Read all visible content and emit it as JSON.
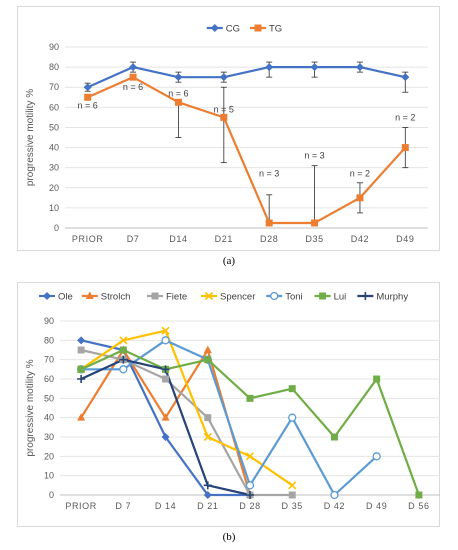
{
  "chart_data": [
    {
      "type": "line",
      "panel": "(a)",
      "categories": [
        "PRIOR",
        "D7",
        "D14",
        "D21",
        "D28",
        "D35",
        "D42",
        "D49"
      ],
      "ylabel": "progressive motility %",
      "ylim": [
        0,
        90
      ],
      "yticks": [
        0,
        10,
        20,
        30,
        40,
        50,
        60,
        70,
        80,
        90
      ],
      "grid": true,
      "legend_position": "top",
      "series": [
        {
          "name": "CG",
          "color": "#4472c4",
          "marker": "diamond",
          "values": [
            70,
            80,
            75,
            75,
            80,
            80,
            80,
            75
          ],
          "error_plus": [
            2,
            2.5,
            2.5,
            2.5,
            2.5,
            2.5,
            2.5,
            2.5
          ],
          "error_minus": [
            2,
            2.5,
            2.5,
            2.5,
            5,
            5,
            2.5,
            7.5
          ]
        },
        {
          "name": "TG",
          "color": "#ed7d31",
          "marker": "square",
          "values": [
            65,
            75,
            62.5,
            55,
            2.5,
            2.5,
            15,
            40
          ],
          "error_plus": [
            0,
            0,
            0,
            15,
            14,
            28.5,
            7.5,
            10
          ],
          "error_minus": [
            0,
            0,
            17.5,
            22.5,
            0,
            0,
            7.5,
            10
          ]
        }
      ],
      "annotations": [
        {
          "text": "n = 6",
          "category": "PRIOR",
          "y": 61
        },
        {
          "text": "n = 6",
          "category": "D7",
          "y": 70
        },
        {
          "text": "n = 6",
          "category": "D14",
          "y": 67
        },
        {
          "text": "n = 5",
          "category": "D21",
          "y": 59
        },
        {
          "text": "n = 3",
          "category": "D28",
          "y": 27
        },
        {
          "text": "n = 3",
          "category": "D35",
          "y": 36
        },
        {
          "text": "n = 2",
          "category": "D42",
          "y": 27
        },
        {
          "text": "n = 2",
          "category": "D49",
          "y": 55
        }
      ]
    },
    {
      "type": "line",
      "panel": "(b)",
      "categories": [
        "PRIOR",
        "D 7",
        "D 14",
        "D 21",
        "D 28",
        "D 35",
        "D 42",
        "D 49",
        "D 56"
      ],
      "ylabel": "progressive motility %",
      "ylim": [
        0,
        90
      ],
      "yticks": [
        0,
        10,
        20,
        30,
        40,
        50,
        60,
        70,
        80,
        90
      ],
      "grid": true,
      "legend_position": "top",
      "series": [
        {
          "name": "Ole",
          "color": "#4472c4",
          "marker": "diamond",
          "values": [
            80,
            75,
            30,
            0,
            0,
            null,
            null,
            null,
            null
          ]
        },
        {
          "name": "Strolch",
          "color": "#ed7d31",
          "marker": "triangle",
          "values": [
            40,
            75,
            40,
            75,
            0,
            null,
            null,
            null,
            null
          ]
        },
        {
          "name": "Fiete",
          "color": "#a5a5a5",
          "marker": "square",
          "values": [
            75,
            70,
            60,
            40,
            0,
            0,
            null,
            null,
            null
          ]
        },
        {
          "name": "Spencer",
          "color": "#ffc000",
          "marker": "x",
          "values": [
            65,
            80,
            85,
            30,
            20,
            5,
            null,
            null,
            null
          ]
        },
        {
          "name": "Toni",
          "color": "#5b9bd5",
          "marker": "circle",
          "values": [
            65,
            65,
            80,
            70,
            5,
            40,
            0,
            20,
            null
          ]
        },
        {
          "name": "Lui",
          "color": "#70ad47",
          "marker": "square-filled",
          "values": [
            65,
            75,
            65,
            70,
            50,
            55,
            30,
            60,
            0
          ]
        },
        {
          "name": "Murphy",
          "color": "#264478",
          "marker": "plus",
          "values": [
            60,
            70,
            65,
            5,
            0,
            null,
            null,
            null,
            null
          ]
        }
      ]
    }
  ],
  "captions": {
    "a": "(a)",
    "b": "(b)"
  }
}
